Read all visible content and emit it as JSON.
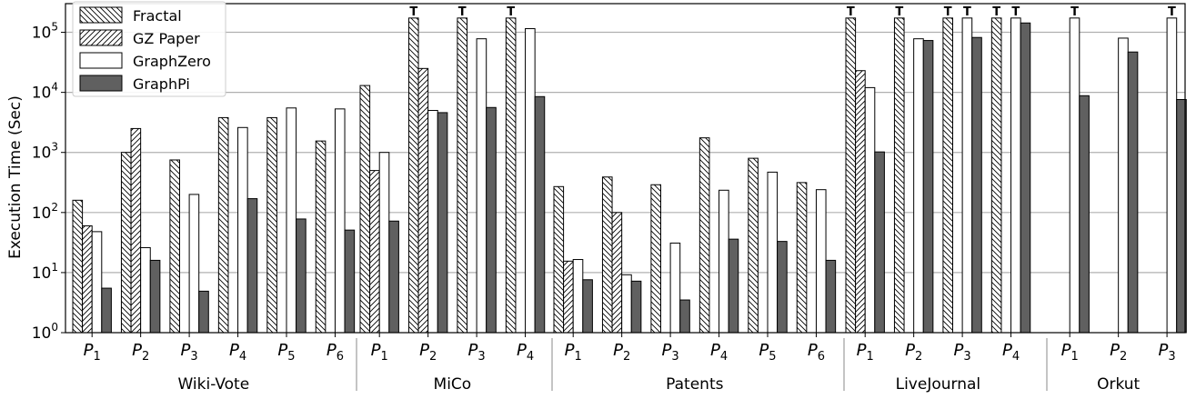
{
  "chart_data": {
    "type": "bar",
    "scale": "log",
    "ylim": [
      1,
      300000
    ],
    "ylabel": "Execution Time (Sec)",
    "y_ticks": [
      {
        "value": 1,
        "base": "10",
        "exp": "0"
      },
      {
        "value": 10,
        "base": "10",
        "exp": "1"
      },
      {
        "value": 100,
        "base": "10",
        "exp": "2"
      },
      {
        "value": 1000,
        "base": "10",
        "exp": "3"
      },
      {
        "value": 10000,
        "base": "10",
        "exp": "4"
      },
      {
        "value": 100000,
        "base": "10",
        "exp": "5"
      }
    ],
    "grid": "horizontal",
    "legend_placement": "top-left",
    "timeout_marker": "T",
    "series": [
      {
        "name": "Fractal",
        "fill": "backslash-hatch"
      },
      {
        "name": "GZ Paper",
        "fill": "slash-hatch"
      },
      {
        "name": "GraphZero",
        "fill": "#ffffff"
      },
      {
        "name": "GraphPi",
        "fill": "#606060"
      }
    ],
    "groups": [
      {
        "name": "Wiki-Vote",
        "patterns": [
          {
            "p": "P",
            "sub": "1",
            "values": [
              160,
              60,
              48,
              5.5
            ],
            "timeout": [
              false,
              false,
              false,
              false
            ]
          },
          {
            "p": "P",
            "sub": "2",
            "values": [
              1000,
              2500,
              26,
              16
            ],
            "timeout": [
              false,
              false,
              false,
              false
            ]
          },
          {
            "p": "P",
            "sub": "3",
            "values": [
              750,
              null,
              200,
              4.9
            ],
            "timeout": [
              false,
              false,
              false,
              false
            ]
          },
          {
            "p": "P",
            "sub": "4",
            "values": [
              3800,
              null,
              2600,
              170
            ],
            "timeout": [
              false,
              false,
              false,
              false
            ]
          },
          {
            "p": "P",
            "sub": "5",
            "values": [
              3800,
              null,
              5500,
              78
            ],
            "timeout": [
              false,
              false,
              false,
              false
            ]
          },
          {
            "p": "P",
            "sub": "6",
            "values": [
              1550,
              null,
              5300,
              51
            ],
            "timeout": [
              false,
              false,
              false,
              false
            ]
          }
        ]
      },
      {
        "name": "MiCo",
        "patterns": [
          {
            "p": "P",
            "sub": "1",
            "values": [
              13000,
              500,
              1000,
              72
            ],
            "timeout": [
              false,
              false,
              false,
              false
            ]
          },
          {
            "p": "P",
            "sub": "2",
            "values": [
              172800,
              25000,
              5000,
              4600
            ],
            "timeout": [
              true,
              false,
              false,
              false
            ]
          },
          {
            "p": "P",
            "sub": "3",
            "values": [
              172800,
              null,
              78000,
              5600
            ],
            "timeout": [
              true,
              false,
              false,
              false
            ]
          },
          {
            "p": "P",
            "sub": "4",
            "values": [
              172800,
              null,
              115000,
              8500
            ],
            "timeout": [
              true,
              false,
              false,
              false
            ]
          }
        ]
      },
      {
        "name": "Patents",
        "patterns": [
          {
            "p": "P",
            "sub": "1",
            "values": [
              270,
              15.5,
              16.5,
              7.6
            ],
            "timeout": [
              false,
              false,
              false,
              false
            ]
          },
          {
            "p": "P",
            "sub": "2",
            "values": [
              390,
              100,
              9.2,
              7.2
            ],
            "timeout": [
              false,
              false,
              false,
              false
            ]
          },
          {
            "p": "P",
            "sub": "3",
            "values": [
              290,
              null,
              31,
              3.5
            ],
            "timeout": [
              false,
              false,
              false,
              false
            ]
          },
          {
            "p": "P",
            "sub": "4",
            "values": [
              1750,
              null,
              235,
              36
            ],
            "timeout": [
              false,
              false,
              false,
              false
            ]
          },
          {
            "p": "P",
            "sub": "5",
            "values": [
              800,
              null,
              470,
              33
            ],
            "timeout": [
              false,
              false,
              false,
              false
            ]
          },
          {
            "p": "P",
            "sub": "6",
            "values": [
              315,
              null,
              240,
              16
            ],
            "timeout": [
              false,
              false,
              false,
              false
            ]
          }
        ]
      },
      {
        "name": "LiveJournal",
        "patterns": [
          {
            "p": "P",
            "sub": "1",
            "values": [
              172800,
              23000,
              12000,
              1020
            ],
            "timeout": [
              true,
              false,
              false,
              false
            ]
          },
          {
            "p": "P",
            "sub": "2",
            "values": [
              172800,
              null,
              78000,
              73000
            ],
            "timeout": [
              true,
              false,
              false,
              false
            ]
          },
          {
            "p": "P",
            "sub": "3",
            "values": [
              172800,
              null,
              172800,
              82000
            ],
            "timeout": [
              true,
              false,
              true,
              false
            ]
          },
          {
            "p": "P",
            "sub": "4",
            "values": [
              172800,
              null,
              172800,
              143000
            ],
            "timeout": [
              true,
              false,
              true,
              false
            ]
          }
        ]
      },
      {
        "name": "Orkut",
        "patterns": [
          {
            "p": "P",
            "sub": "1",
            "values": [
              null,
              null,
              172800,
              8800
            ],
            "timeout": [
              false,
              false,
              true,
              false
            ]
          },
          {
            "p": "P",
            "sub": "2",
            "values": [
              null,
              null,
              80000,
              47000
            ],
            "timeout": [
              false,
              false,
              false,
              false
            ]
          },
          {
            "p": "P",
            "sub": "3",
            "values": [
              null,
              null,
              172800,
              7600
            ],
            "timeout": [
              false,
              false,
              true,
              false
            ]
          }
        ]
      }
    ]
  }
}
